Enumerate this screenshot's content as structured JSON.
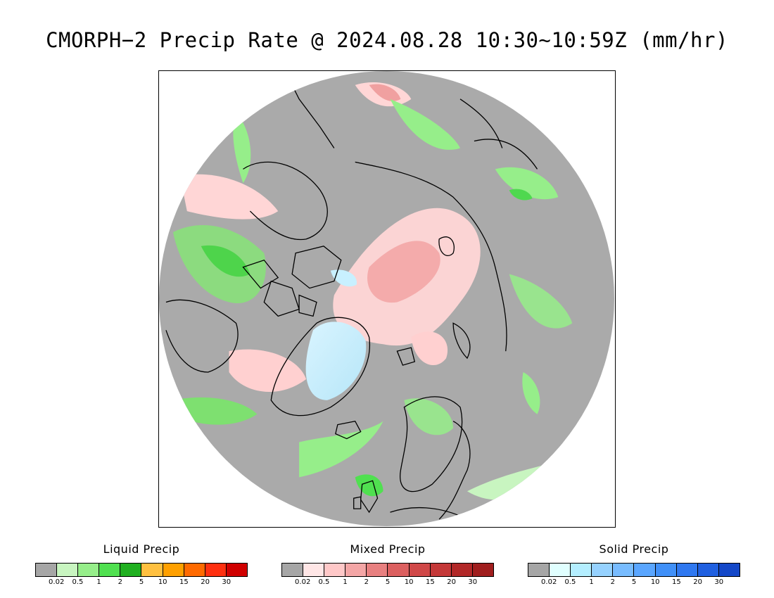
{
  "title": "CMORPH−2 Precip Rate @ 2024.08.28 10:30∼10:59Z (mm/hr)",
  "map": {
    "projection": "north-polar-stereographic",
    "background_color": "#aaaaaa",
    "coastline_color": "#000000"
  },
  "legends": [
    {
      "id": "liquid",
      "title": "Liquid Precip",
      "colors": [
        "#a6a6a6",
        "#c8f5c0",
        "#96ee8a",
        "#50e050",
        "#20b020",
        "#ffc040",
        "#ffa000",
        "#ff6a00",
        "#ff3010",
        "#d00000"
      ],
      "ticks": [
        "0.02",
        "0.5",
        "1",
        "2",
        "5",
        "10",
        "15",
        "20",
        "30"
      ]
    },
    {
      "id": "mixed",
      "title": "Mixed Precip",
      "colors": [
        "#a6a6a6",
        "#ffe6e6",
        "#ffc8c8",
        "#f4a6a6",
        "#e88080",
        "#dc6060",
        "#d04848",
        "#c43838",
        "#b22828",
        "#a01e1e"
      ],
      "ticks": [
        "0.02",
        "0.5",
        "1",
        "2",
        "5",
        "10",
        "15",
        "20",
        "30"
      ]
    },
    {
      "id": "solid",
      "title": "Solid Precip",
      "colors": [
        "#a6a6a6",
        "#e0ffff",
        "#b4eeff",
        "#96d2ff",
        "#78bcff",
        "#5aa6ff",
        "#4090f8",
        "#2f78f0",
        "#2060e0",
        "#1448c8"
      ],
      "ticks": [
        "0.02",
        "0.5",
        "1",
        "2",
        "5",
        "10",
        "15",
        "20",
        "30"
      ]
    }
  ]
}
